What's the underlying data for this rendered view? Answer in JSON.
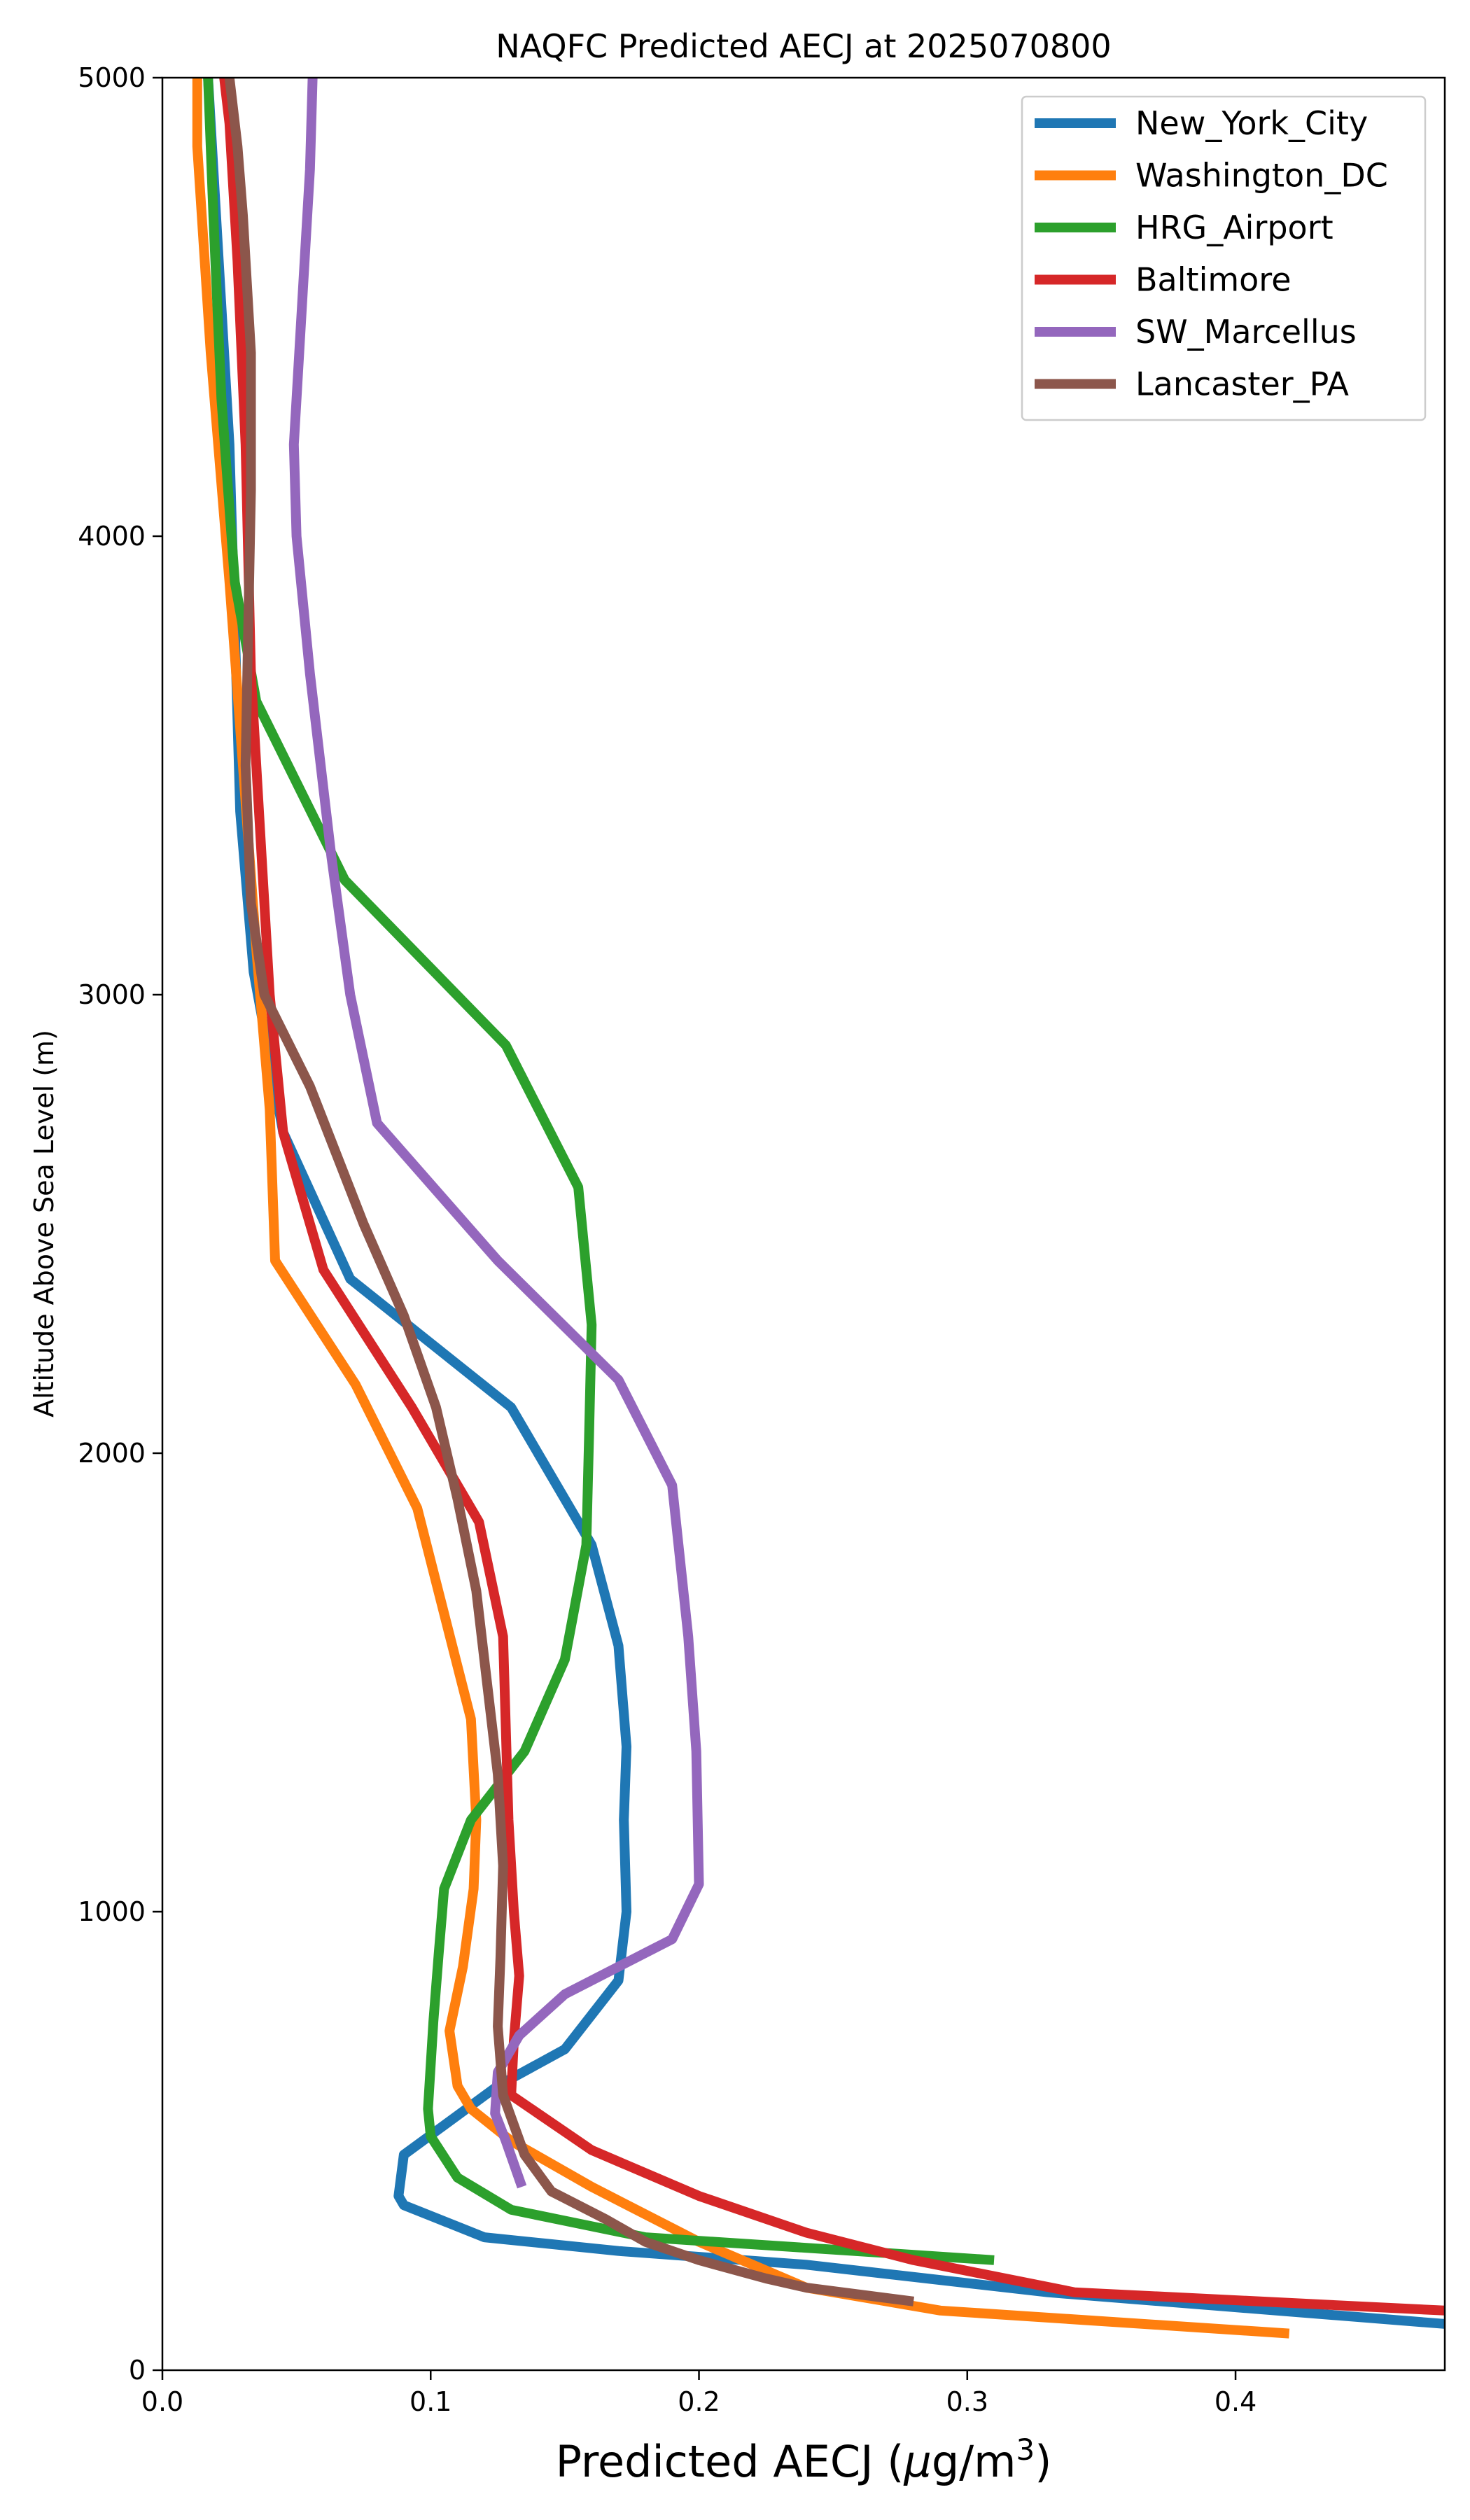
{
  "chart_data": {
    "type": "line",
    "title": "NAQFC Predicted AECJ at 2025070800",
    "xlabel_prefix": "Predicted AECJ (",
    "xlabel_mu": "μ",
    "xlabel_unit": "g/m",
    "xlabel_sup": "3",
    "xlabel_suffix": ")",
    "ylabel": "Altitude Above Sea Level (m)",
    "xlim": [
      0,
      0.478
    ],
    "ylim": [
      0,
      5000
    ],
    "xticks": [
      0.0,
      0.1,
      0.2,
      0.3,
      0.4
    ],
    "xtick_labels": [
      "0.0",
      "0.1",
      "0.2",
      "0.3",
      "0.4"
    ],
    "yticks": [
      0,
      1000,
      2000,
      3000,
      4000,
      5000
    ],
    "ytick_labels": [
      "0",
      "1000",
      "2000",
      "3000",
      "4000",
      "5000"
    ],
    "grid": false,
    "legend_position": "top-right",
    "series": [
      {
        "name": "New_York_City",
        "color": "#1f77b4",
        "points": [
          [
            0.48,
            100
          ],
          [
            0.33,
            170
          ],
          [
            0.24,
            230
          ],
          [
            0.17,
            260
          ],
          [
            0.12,
            290
          ],
          [
            0.09,
            360
          ],
          [
            0.088,
            380
          ],
          [
            0.09,
            470
          ],
          [
            0.125,
            620
          ],
          [
            0.15,
            700
          ],
          [
            0.17,
            850
          ],
          [
            0.173,
            1000
          ],
          [
            0.172,
            1200
          ],
          [
            0.173,
            1360
          ],
          [
            0.17,
            1580
          ],
          [
            0.16,
            1800
          ],
          [
            0.13,
            2100
          ],
          [
            0.07,
            2380
          ],
          [
            0.045,
            2700
          ],
          [
            0.034,
            3050
          ],
          [
            0.029,
            3400
          ],
          [
            0.027,
            3800
          ],
          [
            0.025,
            4200
          ],
          [
            0.021,
            4600
          ],
          [
            0.017,
            5000
          ]
        ]
      },
      {
        "name": "Washington_DC",
        "color": "#ff7f0e",
        "points": [
          [
            0.42,
            80
          ],
          [
            0.29,
            130
          ],
          [
            0.24,
            180
          ],
          [
            0.2,
            280
          ],
          [
            0.16,
            400
          ],
          [
            0.13,
            500
          ],
          [
            0.115,
            570
          ],
          [
            0.11,
            620
          ],
          [
            0.107,
            740
          ],
          [
            0.112,
            880
          ],
          [
            0.116,
            1050
          ],
          [
            0.117,
            1200
          ],
          [
            0.115,
            1420
          ],
          [
            0.095,
            1880
          ],
          [
            0.072,
            2150
          ],
          [
            0.042,
            2420
          ],
          [
            0.04,
            2750
          ],
          [
            0.035,
            3100
          ],
          [
            0.03,
            3500
          ],
          [
            0.025,
            3900
          ],
          [
            0.018,
            4400
          ],
          [
            0.013,
            4850
          ],
          [
            0.013,
            5000
          ]
        ]
      },
      {
        "name": "HRG_Airport",
        "color": "#2ca02c",
        "points": [
          [
            0.31,
            240
          ],
          [
            0.18,
            290
          ],
          [
            0.13,
            350
          ],
          [
            0.11,
            420
          ],
          [
            0.1,
            510
          ],
          [
            0.099,
            570
          ],
          [
            0.101,
            760
          ],
          [
            0.103,
            910
          ],
          [
            0.105,
            1050
          ],
          [
            0.115,
            1200
          ],
          [
            0.135,
            1350
          ],
          [
            0.15,
            1550
          ],
          [
            0.158,
            1800
          ],
          [
            0.159,
            2030
          ],
          [
            0.16,
            2280
          ],
          [
            0.155,
            2580
          ],
          [
            0.128,
            2890
          ],
          [
            0.068,
            3250
          ],
          [
            0.035,
            3640
          ],
          [
            0.027,
            3900
          ],
          [
            0.022,
            4300
          ],
          [
            0.019,
            4700
          ],
          [
            0.017,
            5000
          ]
        ]
      },
      {
        "name": "Baltimore",
        "color": "#d62728",
        "points": [
          [
            0.478,
            130
          ],
          [
            0.34,
            170
          ],
          [
            0.28,
            240
          ],
          [
            0.24,
            300
          ],
          [
            0.2,
            380
          ],
          [
            0.16,
            480
          ],
          [
            0.13,
            600
          ],
          [
            0.131,
            720
          ],
          [
            0.133,
            860
          ],
          [
            0.131,
            1000
          ],
          [
            0.129,
            1200
          ],
          [
            0.128,
            1400
          ],
          [
            0.127,
            1600
          ],
          [
            0.118,
            1850
          ],
          [
            0.093,
            2100
          ],
          [
            0.06,
            2400
          ],
          [
            0.045,
            2700
          ],
          [
            0.04,
            3000
          ],
          [
            0.037,
            3300
          ],
          [
            0.033,
            3700
          ],
          [
            0.031,
            4200
          ],
          [
            0.028,
            4600
          ],
          [
            0.025,
            4900
          ],
          [
            0.023,
            5000
          ]
        ]
      },
      {
        "name": "SW_Marcellus",
        "color": "#9467bd",
        "points": [
          [
            0.134,
            400
          ],
          [
            0.128,
            500
          ],
          [
            0.124,
            560
          ],
          [
            0.125,
            650
          ],
          [
            0.133,
            730
          ],
          [
            0.15,
            820
          ],
          [
            0.18,
            910
          ],
          [
            0.19,
            940
          ],
          [
            0.2,
            1060
          ],
          [
            0.199,
            1350
          ],
          [
            0.196,
            1600
          ],
          [
            0.19,
            1930
          ],
          [
            0.17,
            2160
          ],
          [
            0.125,
            2420
          ],
          [
            0.08,
            2720
          ],
          [
            0.07,
            3000
          ],
          [
            0.063,
            3300
          ],
          [
            0.055,
            3700
          ],
          [
            0.05,
            4000
          ],
          [
            0.049,
            4200
          ],
          [
            0.052,
            4500
          ],
          [
            0.055,
            4800
          ],
          [
            0.056,
            5000
          ]
        ]
      },
      {
        "name": "Lancaster_PA",
        "color": "#8c564b",
        "points": [
          [
            0.28,
            150
          ],
          [
            0.24,
            180
          ],
          [
            0.225,
            200
          ],
          [
            0.2,
            240
          ],
          [
            0.18,
            280
          ],
          [
            0.165,
            330
          ],
          [
            0.145,
            390
          ],
          [
            0.135,
            470
          ],
          [
            0.127,
            600
          ],
          [
            0.125,
            750
          ],
          [
            0.126,
            900
          ],
          [
            0.127,
            1100
          ],
          [
            0.125,
            1300
          ],
          [
            0.121,
            1500
          ],
          [
            0.117,
            1700
          ],
          [
            0.11,
            1900
          ],
          [
            0.102,
            2100
          ],
          [
            0.09,
            2300
          ],
          [
            0.075,
            2500
          ],
          [
            0.055,
            2800
          ],
          [
            0.038,
            3000
          ],
          [
            0.033,
            3200
          ],
          [
            0.031,
            3500
          ],
          [
            0.032,
            3800
          ],
          [
            0.033,
            4100
          ],
          [
            0.033,
            4400
          ],
          [
            0.03,
            4700
          ],
          [
            0.028,
            4850
          ],
          [
            0.025,
            5000
          ]
        ]
      }
    ]
  }
}
